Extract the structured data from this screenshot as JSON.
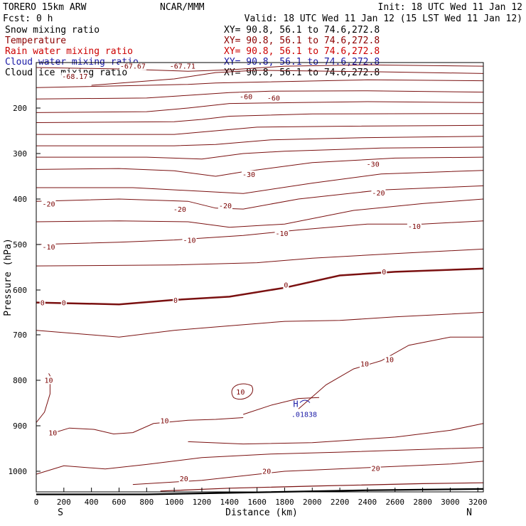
{
  "header": {
    "model": "TORERO  15km ARW",
    "org": "NCAR/MMM",
    "init": "Init: 18 UTC Wed 11 Jan 12",
    "fcst": "Fcst:    0 h",
    "valid": "Valid: 18 UTC Wed 11 Jan 12 (15 LST Wed 11 Jan 12)"
  },
  "fields": [
    {
      "name": "Snow mixing ratio",
      "color": "#000000",
      "xy": "XY=  90.8, 56.1 to  74.6,272.8"
    },
    {
      "name": "Temperature",
      "color": "#8b0000",
      "xy": "XY=  90.8, 56.1 to  74.6,272.8"
    },
    {
      "name": "Rain water mixing ratio",
      "color": "#cc0000",
      "xy": "XY=  90.8, 56.1 to  74.6,272.8"
    },
    {
      "name": "Cloud water mixing ratio",
      "color": "#1a1aa6",
      "xy": "XY=  90.8, 56.1 to  74.6,272.8"
    },
    {
      "name": "Cloud ice mixing ratio",
      "color": "#000000",
      "xy": "XY=  90.8, 56.1 to  74.6,272.8"
    }
  ],
  "chart_data": {
    "type": "contour",
    "variable": "Temperature",
    "contour_interval": 10,
    "xlabel": "Distance (km)",
    "ylabel": "Pressure (hPa)",
    "xlim": [
      0,
      3240
    ],
    "ylim": [
      1050,
      100
    ],
    "x_ticks": [
      0,
      200,
      400,
      600,
      800,
      1000,
      1200,
      1400,
      1600,
      1800,
      2000,
      2200,
      2400,
      2600,
      2800,
      3000,
      3200
    ],
    "y_ticks": [
      200,
      300,
      400,
      500,
      600,
      700,
      800,
      900,
      1000
    ],
    "y_scale": "log",
    "left_endpoint": "S",
    "right_endpoint": "N",
    "contour_labels": [
      {
        "text": "-67.67",
        "x": 700,
        "p": 107
      },
      {
        "text": "-67.71",
        "x": 1060,
        "p": 107
      },
      {
        "text": "-68.17",
        "x": 280,
        "p": 130
      },
      {
        "text": "-60",
        "x": 1520,
        "p": 174
      },
      {
        "text": "-60",
        "x": 1720,
        "p": 177
      },
      {
        "text": "-30",
        "x": 2440,
        "p": 323
      },
      {
        "text": "-30",
        "x": 1540,
        "p": 345
      },
      {
        "text": "-20",
        "x": 2480,
        "p": 386
      },
      {
        "text": "-20",
        "x": 90,
        "p": 410
      },
      {
        "text": "-20",
        "x": 1370,
        "p": 414
      },
      {
        "text": "-20",
        "x": 1040,
        "p": 422
      },
      {
        "text": "-10",
        "x": 2740,
        "p": 459
      },
      {
        "text": "-10",
        "x": 1780,
        "p": 475
      },
      {
        "text": "-10",
        "x": 1110,
        "p": 490
      },
      {
        "text": "-10",
        "x": 90,
        "p": 505
      },
      {
        "text": "0",
        "x": 2520,
        "p": 559
      },
      {
        "text": "0",
        "x": 1810,
        "p": 588
      },
      {
        "text": "0",
        "x": 1010,
        "p": 622
      },
      {
        "text": "0",
        "x": 45,
        "p": 628
      },
      {
        "text": "0",
        "x": 200,
        "p": 628
      },
      {
        "text": "10",
        "x": 2560,
        "p": 754
      },
      {
        "text": "10",
        "x": 2380,
        "p": 763
      },
      {
        "text": "10",
        "x": 90,
        "p": 799
      },
      {
        "text": "10",
        "x": 1480,
        "p": 825
      },
      {
        "text": "10",
        "x": 930,
        "p": 888
      },
      {
        "text": "10",
        "x": 120,
        "p": 915
      },
      {
        "text": "20",
        "x": 2460,
        "p": 993
      },
      {
        "text": "20",
        "x": 1670,
        "p": 999
      },
      {
        "text": "20",
        "x": 1070,
        "p": 1017
      }
    ],
    "extrema": [
      {
        "type": "H",
        "x": 1880,
        "p": 868,
        "value": ".01838"
      }
    ]
  }
}
